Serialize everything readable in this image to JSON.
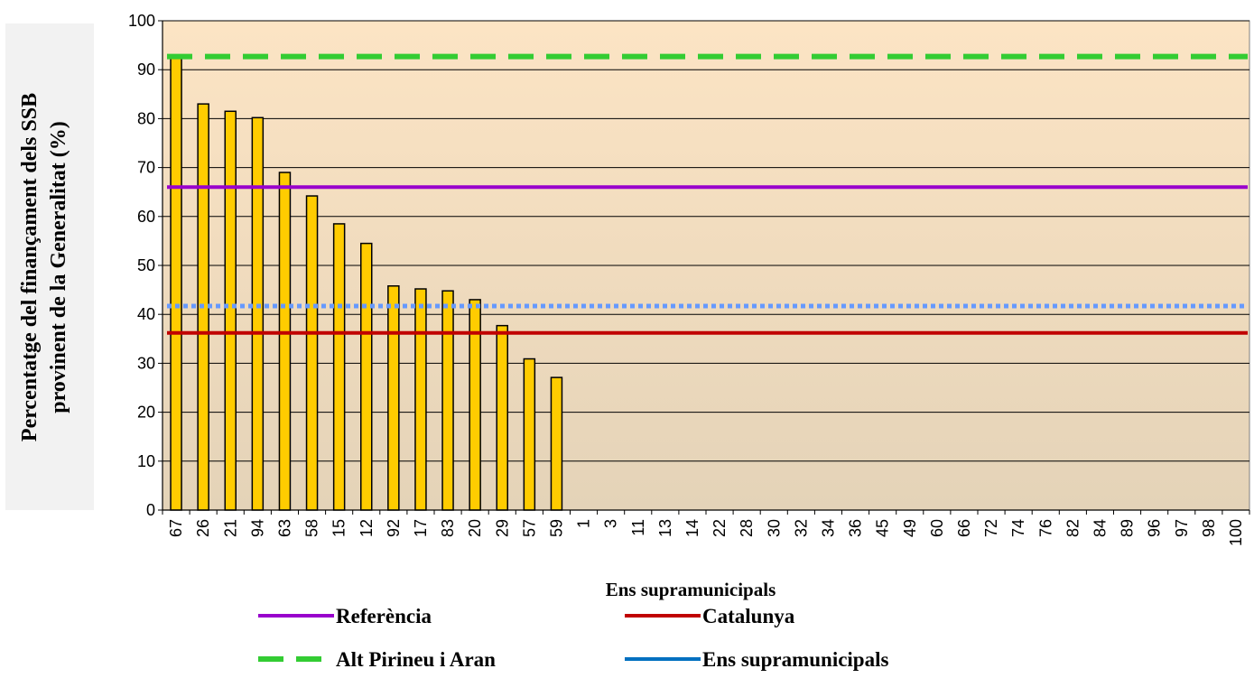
{
  "chart_data": {
    "type": "bar",
    "xlabel": "Ens supramunicipals",
    "ylabel_lines": [
      "Percentatge del finançament dels SSB",
      "provinent de la Generalitat (%)"
    ],
    "ylim": [
      0,
      100
    ],
    "yticks": [
      0,
      10,
      20,
      30,
      40,
      50,
      60,
      70,
      80,
      90,
      100
    ],
    "grid": true,
    "legend_position": "bottom",
    "categories": [
      "67",
      "26",
      "21",
      "94",
      "63",
      "58",
      "15",
      "12",
      "92",
      "17",
      "83",
      "20",
      "29",
      "57",
      "59",
      "1",
      "3",
      "11",
      "13",
      "14",
      "22",
      "28",
      "30",
      "32",
      "34",
      "36",
      "45",
      "49",
      "60",
      "66",
      "72",
      "74",
      "76",
      "82",
      "84",
      "89",
      "96",
      "97",
      "98",
      "100"
    ],
    "series": [
      {
        "name": "Ens supramunicipals",
        "kind": "bar",
        "color": "#FFCC00",
        "values": [
          92.5,
          83,
          81.5,
          80.2,
          69,
          64.2,
          58.5,
          54.5,
          45.8,
          45.2,
          44.8,
          43,
          37.7,
          30.9,
          27.1,
          0,
          0,
          0,
          0,
          0,
          0,
          0,
          0,
          0,
          0,
          0,
          0,
          0,
          0,
          0,
          0,
          0,
          0,
          0,
          0,
          0,
          0,
          0,
          0,
          0
        ]
      },
      {
        "name": "Referència",
        "kind": "hline",
        "value": 66,
        "color": "#9900CC",
        "style": "solid"
      },
      {
        "name": "Catalunya",
        "kind": "hline",
        "value": 36.2,
        "color": "#C00000",
        "style": "solid"
      },
      {
        "name": "Alt Pirineu i Aran",
        "kind": "hline",
        "value": 92.7,
        "color": "#33CC33",
        "style": "dashed"
      },
      {
        "name": "",
        "kind": "hline",
        "value": 41.7,
        "color": "#6699FF",
        "style": "dotted"
      }
    ],
    "legend": [
      {
        "label": "Referència",
        "color": "#9900CC",
        "style": "solid"
      },
      {
        "label": "Catalunya",
        "color": "#C00000",
        "style": "solid"
      },
      {
        "label": "Alt Pirineu i Aran",
        "color": "#33CC33",
        "style": "dashed"
      },
      {
        "label": "Ens supramunicipals",
        "color": "#0070C0",
        "style": "solid"
      }
    ]
  }
}
